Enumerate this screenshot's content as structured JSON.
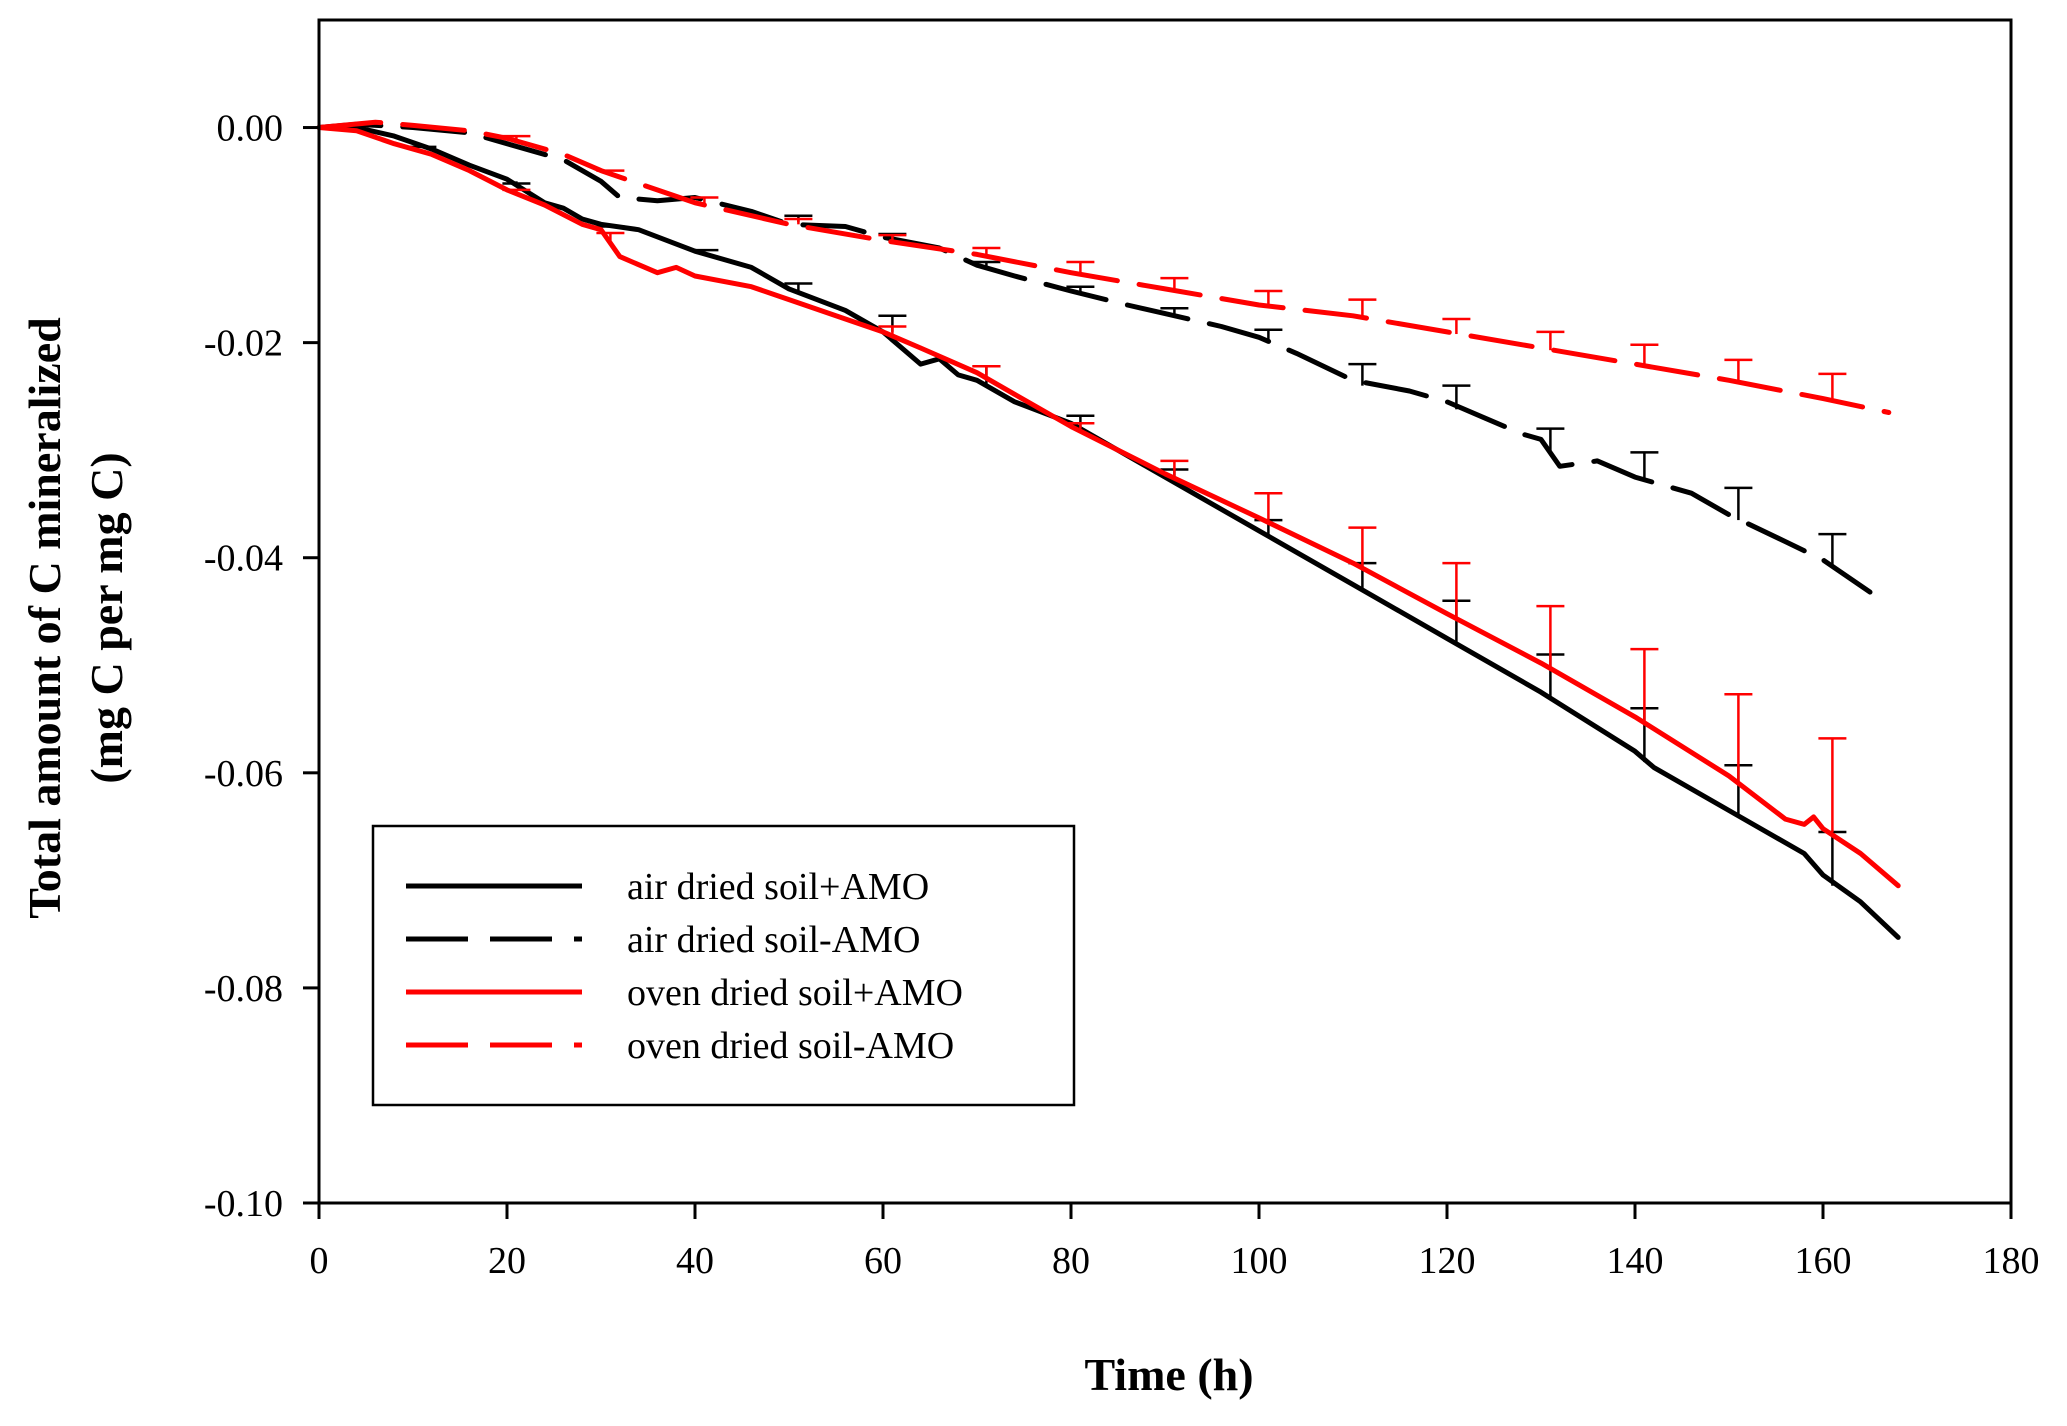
{
  "chart_data": {
    "type": "line",
    "title": "",
    "xlabel": "Time (h)",
    "ylabel_line1": "Total amount of C mineralized",
    "ylabel_line2": "(mg C per mg C)",
    "xlim": [
      0,
      180
    ],
    "ylim": [
      -0.1,
      0.01
    ],
    "xticks": [
      0,
      20,
      40,
      60,
      80,
      100,
      120,
      140,
      160,
      180
    ],
    "xtick_labels": [
      "0",
      "20",
      "40",
      "60",
      "80",
      "100",
      "120",
      "140",
      "160",
      "180"
    ],
    "yticks": [
      0.0,
      -0.02,
      -0.04,
      -0.06,
      -0.08,
      -0.1
    ],
    "ytick_labels": [
      "0.00",
      "-0.02",
      "-0.04",
      "-0.06",
      "-0.08",
      "-0.10"
    ],
    "grid": false,
    "legend_position": "bottom-left",
    "series": [
      {
        "name": "air dried soil+AMO",
        "color": "#000000",
        "dashed": false,
        "x": [
          0,
          4,
          8,
          12,
          16,
          20,
          24,
          26,
          28,
          30,
          34,
          40,
          46,
          50,
          56,
          60,
          62,
          64,
          66,
          68,
          70,
          74,
          80,
          90,
          100,
          110,
          120,
          130,
          140,
          142,
          150,
          158,
          160,
          164,
          168
        ],
        "y": [
          0,
          0,
          -0.0008,
          -0.002,
          -0.0035,
          -0.0048,
          -0.007,
          -0.0075,
          -0.0085,
          -0.009,
          -0.0095,
          -0.0115,
          -0.013,
          -0.015,
          -0.017,
          -0.019,
          -0.0205,
          -0.022,
          -0.0215,
          -0.023,
          -0.0235,
          -0.0255,
          -0.0275,
          -0.0325,
          -0.0375,
          -0.0425,
          -0.0475,
          -0.0525,
          -0.058,
          -0.0595,
          -0.0635,
          -0.0675,
          -0.0695,
          -0.072,
          -0.0753
        ],
        "errorbars": [
          {
            "x": 11,
            "y": -0.0018,
            "cap": -0.0018
          },
          {
            "x": 21,
            "y": -0.005,
            "cap": -0.0052
          },
          {
            "x": 31,
            "y": -0.009,
            "cap": -0.0092
          },
          {
            "x": 41,
            "y": -0.0115,
            "cap": -0.0114
          },
          {
            "x": 51,
            "y": -0.0152,
            "cap": -0.0145
          },
          {
            "x": 61,
            "y": -0.019,
            "cap": -0.0175
          },
          {
            "x": 71,
            "y": -0.024,
            "cap": -0.0222
          },
          {
            "x": 81,
            "y": -0.028,
            "cap": -0.0268
          },
          {
            "x": 91,
            "y": -0.033,
            "cap": -0.0318
          },
          {
            "x": 101,
            "y": -0.038,
            "cap": -0.0365
          },
          {
            "x": 111,
            "y": -0.043,
            "cap": -0.0405
          },
          {
            "x": 121,
            "y": -0.048,
            "cap": -0.044
          },
          {
            "x": 131,
            "y": -0.053,
            "cap": -0.049
          },
          {
            "x": 141,
            "y": -0.059,
            "cap": -0.054
          },
          {
            "x": 151,
            "y": -0.064,
            "cap": -0.0593
          },
          {
            "x": 161,
            "y": -0.0705,
            "cap": -0.0655
          }
        ]
      },
      {
        "name": "air dried soil-AMO",
        "color": "#000000",
        "dashed": true,
        "x": [
          0,
          4,
          10,
          16,
          20,
          26,
          30,
          32,
          36,
          40,
          46,
          50,
          56,
          60,
          66,
          70,
          74,
          80,
          86,
          90,
          96,
          100,
          104,
          110,
          116,
          120,
          124,
          128,
          130,
          132,
          136,
          140,
          146,
          150,
          156,
          160,
          165
        ],
        "y": [
          0,
          0.0003,
          0,
          -0.0005,
          -0.0015,
          -0.003,
          -0.005,
          -0.0065,
          -0.0068,
          -0.0065,
          -0.0078,
          -0.009,
          -0.0092,
          -0.0102,
          -0.0112,
          -0.0128,
          -0.0138,
          -0.0152,
          -0.0165,
          -0.0173,
          -0.0185,
          -0.0195,
          -0.021,
          -0.0235,
          -0.0245,
          -0.0255,
          -0.027,
          -0.0285,
          -0.029,
          -0.0315,
          -0.031,
          -0.0325,
          -0.034,
          -0.036,
          -0.0385,
          -0.0402,
          -0.0432
        ],
        "errorbars": [
          {
            "x": 51,
            "y": -0.0088,
            "cap": -0.0082
          },
          {
            "x": 61,
            "y": -0.0103,
            "cap": -0.0099
          },
          {
            "x": 71,
            "y": -0.0132,
            "cap": -0.0125
          },
          {
            "x": 81,
            "y": -0.0155,
            "cap": -0.0148
          },
          {
            "x": 91,
            "y": -0.0175,
            "cap": -0.0168
          },
          {
            "x": 101,
            "y": -0.0198,
            "cap": -0.0188
          },
          {
            "x": 111,
            "y": -0.024,
            "cap": -0.022
          },
          {
            "x": 121,
            "y": -0.0262,
            "cap": -0.024
          },
          {
            "x": 131,
            "y": -0.0305,
            "cap": -0.028
          },
          {
            "x": 141,
            "y": -0.0328,
            "cap": -0.0302
          },
          {
            "x": 151,
            "y": -0.0365,
            "cap": -0.0335
          },
          {
            "x": 161,
            "y": -0.041,
            "cap": -0.0378
          }
        ]
      },
      {
        "name": "oven dried soil+AMO",
        "color": "#ff0000",
        "dashed": false,
        "x": [
          0,
          4,
          8,
          12,
          16,
          20,
          24,
          28,
          30,
          32,
          36,
          38,
          40,
          46,
          50,
          56,
          60,
          64,
          70,
          74,
          80,
          90,
          100,
          110,
          120,
          130,
          140,
          150,
          156,
          158,
          159,
          160,
          164,
          168
        ],
        "y": [
          0,
          -0.0003,
          -0.0015,
          -0.0025,
          -0.004,
          -0.0058,
          -0.0072,
          -0.009,
          -0.0095,
          -0.012,
          -0.0135,
          -0.013,
          -0.0138,
          -0.0148,
          -0.016,
          -0.0178,
          -0.019,
          -0.0205,
          -0.0228,
          -0.0248,
          -0.0278,
          -0.0322,
          -0.0363,
          -0.0405,
          -0.0452,
          -0.0498,
          -0.0548,
          -0.0603,
          -0.0643,
          -0.0648,
          -0.0641,
          -0.0652,
          -0.0675,
          -0.0705
        ],
        "errorbars": [
          {
            "x": 21,
            "y": -0.006,
            "cap": -0.0058
          },
          {
            "x": 31,
            "y": -0.0105,
            "cap": -0.0098
          },
          {
            "x": 61,
            "y": -0.0192,
            "cap": -0.0185
          },
          {
            "x": 71,
            "y": -0.0232,
            "cap": -0.0222
          },
          {
            "x": 81,
            "y": -0.028,
            "cap": -0.0275
          },
          {
            "x": 91,
            "y": -0.0328,
            "cap": -0.031
          },
          {
            "x": 101,
            "y": -0.0368,
            "cap": -0.034
          },
          {
            "x": 111,
            "y": -0.041,
            "cap": -0.0372
          },
          {
            "x": 121,
            "y": -0.0458,
            "cap": -0.0405
          },
          {
            "x": 131,
            "y": -0.0505,
            "cap": -0.0445
          },
          {
            "x": 141,
            "y": -0.0555,
            "cap": -0.0485
          },
          {
            "x": 151,
            "y": -0.061,
            "cap": -0.0527
          },
          {
            "x": 161,
            "y": -0.0655,
            "cap": -0.0568
          }
        ]
      },
      {
        "name": "oven dried soil-AMO",
        "color": "#ff0000",
        "dashed": true,
        "x": [
          0,
          6,
          10,
          16,
          20,
          26,
          30,
          40,
          50,
          60,
          70,
          80,
          90,
          100,
          110,
          120,
          130,
          140,
          150,
          160,
          167
        ],
        "y": [
          0,
          0.0005,
          0.0002,
          -0.0003,
          -0.001,
          -0.0025,
          -0.004,
          -0.007,
          -0.009,
          -0.0105,
          -0.0118,
          -0.0135,
          -0.015,
          -0.0165,
          -0.0175,
          -0.019,
          -0.0205,
          -0.022,
          -0.0235,
          -0.0252,
          -0.0265
        ],
        "errorbars": [
          {
            "x": 21,
            "y": -0.0012,
            "cap": -0.0008
          },
          {
            "x": 31,
            "y": -0.0045,
            "cap": -0.004
          },
          {
            "x": 41,
            "y": -0.0072,
            "cap": -0.0065
          },
          {
            "x": 51,
            "y": -0.009,
            "cap": -0.0085
          },
          {
            "x": 61,
            "y": -0.0105,
            "cap": -0.01
          },
          {
            "x": 71,
            "y": -0.012,
            "cap": -0.0112
          },
          {
            "x": 81,
            "y": -0.0137,
            "cap": -0.0125
          },
          {
            "x": 91,
            "y": -0.0152,
            "cap": -0.014
          },
          {
            "x": 101,
            "y": -0.0166,
            "cap": -0.0152
          },
          {
            "x": 111,
            "y": -0.0177,
            "cap": -0.016
          },
          {
            "x": 121,
            "y": -0.0192,
            "cap": -0.0178
          },
          {
            "x": 131,
            "y": -0.0207,
            "cap": -0.019
          },
          {
            "x": 141,
            "y": -0.0222,
            "cap": -0.0202
          },
          {
            "x": 151,
            "y": -0.0237,
            "cap": -0.0216
          },
          {
            "x": 161,
            "y": -0.0254,
            "cap": -0.0229
          }
        ]
      }
    ]
  }
}
